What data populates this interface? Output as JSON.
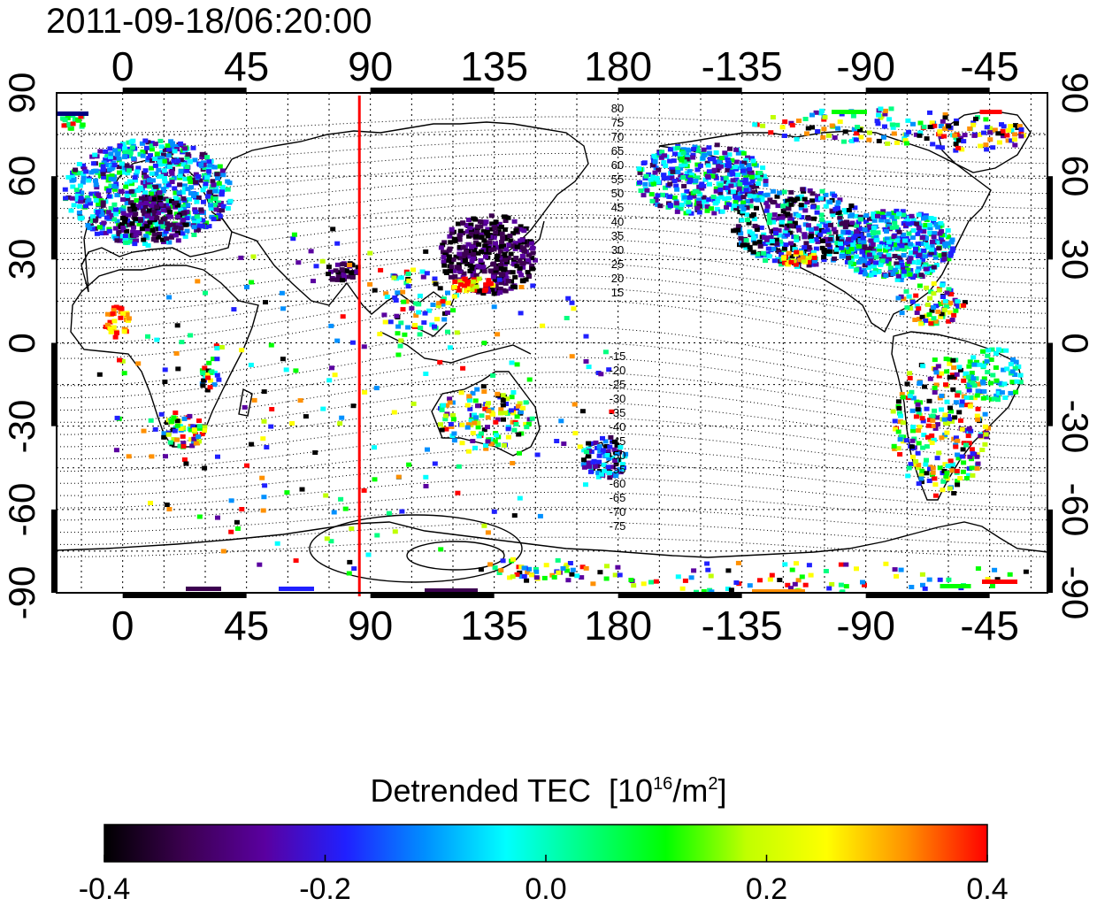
{
  "timestamp": "2011-09-18/06:20:00",
  "map": {
    "type": "tec-map",
    "projection": "equirectangular",
    "lon_range": [
      -24,
      336
    ],
    "lat_range": [
      -90,
      90
    ],
    "x_ticks": [
      "0",
      "45",
      "90",
      "135",
      "180",
      "-135",
      "-90",
      "-45"
    ],
    "x_tick_lons": [
      0,
      45,
      90,
      135,
      180,
      225,
      270,
      315
    ],
    "y_ticks": [
      "90",
      "60",
      "30",
      "0",
      "-30",
      "-60",
      "-90"
    ],
    "y_tick_lats": [
      90,
      60,
      30,
      0,
      -30,
      -60,
      -90
    ],
    "grid": "dotted every 15 degrees",
    "terminator_lon": 86,
    "terminator_color": "#ff0000",
    "contour_labels_north": [
      "80",
      "75",
      "70",
      "65",
      "60",
      "55",
      "50",
      "45",
      "40",
      "35",
      "30",
      "25",
      "20",
      "15"
    ],
    "contour_labels_south": [
      "-15",
      "-20",
      "-25",
      "-30",
      "-35",
      "-40",
      "-45",
      "-50",
      "-55",
      "-60",
      "-65",
      "-70",
      "-75"
    ]
  },
  "colorbar": {
    "title": "Detrended TEC",
    "unit_base": "[10",
    "unit_exp": "16",
    "unit_mid": "/m",
    "unit_exp2": "2",
    "unit_end": "]",
    "ticks": [
      "-0.4",
      "-0.2",
      "0.0",
      "0.2",
      "0.4"
    ],
    "tick_values": [
      -0.4,
      -0.2,
      0.0,
      0.2,
      0.4
    ],
    "range": [
      -0.4,
      0.4
    ],
    "colormap": [
      "#000000",
      "#3c0050",
      "#5a00a0",
      "#2020ff",
      "#0090ff",
      "#00ffff",
      "#00ff80",
      "#00ff00",
      "#c0ff00",
      "#ffff00",
      "#ff9000",
      "#ff0000"
    ]
  }
}
